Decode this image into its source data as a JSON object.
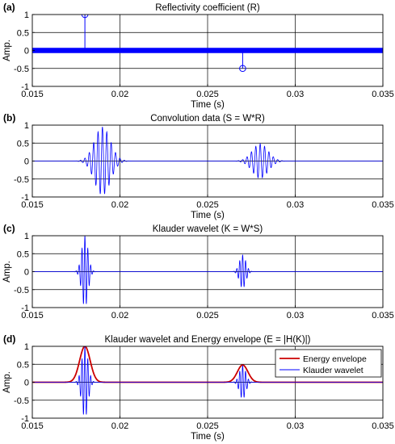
{
  "chart_data": [
    {
      "type": "stem",
      "panel_label": "(a)",
      "title": "Reflectivity coefficient (R)",
      "xlabel": "Time (s)",
      "ylabel": "Amp.",
      "xlim": [
        0.015,
        0.035
      ],
      "ylim": [
        -1,
        1
      ],
      "xticks": [
        "0.015",
        "0.02",
        "0.025",
        "0.03",
        "0.035"
      ],
      "yticks": [
        "1",
        "0.5",
        "0",
        "-0.5",
        "-1"
      ],
      "grid": true,
      "series": [
        {
          "color": "#0000ff",
          "spikes": [
            {
              "x": 0.018,
              "y": 1.0
            },
            {
              "x": 0.027,
              "y": -0.5
            }
          ],
          "baseline_markers_dense": true
        }
      ]
    },
    {
      "type": "line",
      "panel_label": "(b)",
      "title": "Convolution data (S = W*R)",
      "xlabel": "Time (s)",
      "ylabel": "",
      "xlim": [
        0.015,
        0.035
      ],
      "ylim": [
        -1,
        1
      ],
      "xticks": [
        "0.015",
        "0.02",
        "0.025",
        "0.03",
        "0.035"
      ],
      "yticks": [
        "1",
        "0.5",
        "0",
        "-0.5",
        "-1"
      ],
      "grid": true,
      "series": [
        {
          "color": "#0000ff",
          "packets": [
            {
              "center": 0.019,
              "amp": 0.95,
              "sigma": 0.00045,
              "freq": 4000
            },
            {
              "center": 0.028,
              "amp": 0.48,
              "sigma": 0.00045,
              "freq": 4000
            }
          ]
        }
      ]
    },
    {
      "type": "line",
      "panel_label": "(c)",
      "title": "Klauder wavelet (K = W*S)",
      "xlabel": "",
      "ylabel": "Amp.",
      "xlim": [
        0.015,
        0.035
      ],
      "ylim": [
        -1,
        1
      ],
      "xticks": [
        "0.015",
        "0.02",
        "0.025",
        "0.03",
        "0.035"
      ],
      "yticks": [
        "1",
        "0.5",
        "0",
        "-0.5",
        "-1"
      ],
      "grid": true,
      "series": [
        {
          "color": "#0000ff",
          "packets": [
            {
              "center": 0.018,
              "amp": 1.0,
              "sigma": 0.00018,
              "freq": 6000
            },
            {
              "center": 0.027,
              "amp": 0.47,
              "sigma": 0.00018,
              "freq": 6000
            }
          ]
        }
      ]
    },
    {
      "type": "line",
      "panel_label": "(d)",
      "title": "Klauder wavelet and Energy envelope (E = |H(K)|)",
      "xlabel": "Time (s)",
      "ylabel": "Amp.",
      "xlim": [
        0.015,
        0.035
      ],
      "ylim": [
        -1,
        1
      ],
      "xticks": [
        "0.015",
        "0.02",
        "0.025",
        "0.03",
        "0.035"
      ],
      "yticks": [
        "1",
        "0.5",
        "0",
        "-0.5",
        "-1"
      ],
      "grid": true,
      "legend_position": "top-right",
      "series": [
        {
          "name": "Energy envelope",
          "color": "#cc0000",
          "envelopes": [
            {
              "center": 0.018,
              "amp": 1.0,
              "sigma": 0.0003
            },
            {
              "center": 0.027,
              "amp": 0.48,
              "sigma": 0.0003
            }
          ]
        },
        {
          "name": "Klauder wavelet",
          "color": "#0000ff",
          "packets": [
            {
              "center": 0.018,
              "amp": 1.0,
              "sigma": 0.00018,
              "freq": 6000
            },
            {
              "center": 0.027,
              "amp": 0.47,
              "sigma": 0.00018,
              "freq": 6000
            }
          ]
        }
      ]
    }
  ]
}
